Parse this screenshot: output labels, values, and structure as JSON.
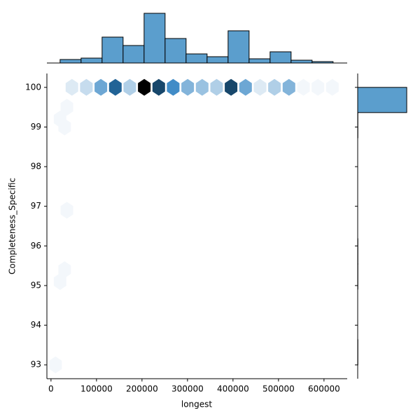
{
  "chart_data": [
    {
      "type": "hexbin",
      "x_label": "longest",
      "y_label": "Completeness_Specific",
      "x": [
        46000,
        77800,
        109600,
        141400,
        173200,
        205000,
        236800,
        268600,
        300400,
        332200,
        364000,
        395800,
        427600,
        459400,
        491200,
        523000,
        554800,
        586600,
        618400,
        20000,
        30000,
        35000,
        30000,
        20000,
        10000,
        35000
      ],
      "y": [
        100,
        100,
        100,
        100,
        100,
        100,
        100,
        100,
        100,
        100,
        100,
        100,
        100,
        100,
        100,
        100,
        100,
        100,
        100,
        99.2,
        99.0,
        96.9,
        95.4,
        95.1,
        93.0,
        99.5
      ],
      "counts": [
        2,
        3,
        7,
        12,
        4,
        19,
        14,
        9,
        6,
        5,
        4,
        14,
        7,
        2,
        4,
        6,
        1,
        1,
        1,
        1,
        1,
        1,
        1,
        1,
        1,
        1
      ],
      "colors": [
        "#f3f7fb",
        "#2a7fc0",
        "#000000"
      ],
      "xlim": [
        -9000,
        651000
      ],
      "ylim": [
        92.65,
        100.35
      ],
      "xticks": [
        0,
        100000,
        200000,
        300000,
        400000,
        500000,
        600000
      ],
      "yticks": [
        93,
        94,
        95,
        96,
        97,
        98,
        99,
        100
      ]
    },
    {
      "type": "histogram",
      "orientation": "vertical",
      "color": "#5b9ecd",
      "bins": [
        20000,
        66154,
        112308,
        158462,
        204615,
        250769,
        296923,
        343077,
        389231,
        435385,
        481538,
        527692,
        573846,
        620000
      ],
      "counts": [
        5,
        7,
        37,
        25,
        71,
        35,
        13,
        9,
        46,
        6,
        16,
        4,
        2
      ],
      "xlim": [
        -9000,
        651000
      ],
      "ylim": [
        0,
        75
      ]
    },
    {
      "type": "histogram",
      "orientation": "horizontal",
      "color": "#5b9ecd",
      "bins": [
        93,
        93.636,
        94.273,
        94.909,
        95.545,
        96.182,
        96.818,
        97.455,
        98.091,
        98.727,
        99.364,
        100
      ],
      "counts": [
        1,
        0,
        0,
        1,
        1,
        0,
        0,
        0,
        0,
        1,
        272
      ],
      "ylim": [
        92.65,
        100.35
      ],
      "xlim": [
        0,
        330
      ],
      "yticks": [
        93,
        94,
        95,
        96,
        97,
        98,
        99,
        100
      ]
    }
  ]
}
